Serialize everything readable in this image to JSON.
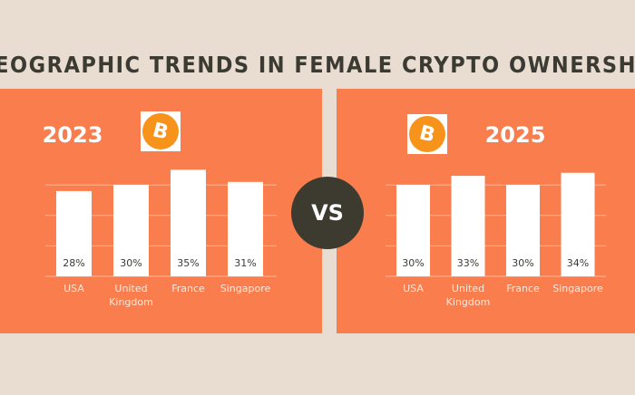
{
  "title": "GEOGRAPHIC TRENDS IN FEMALE CRYPTO OWNERSHIP",
  "comparison_label": "VS",
  "chart_data": [
    {
      "type": "bar",
      "title": "2023",
      "categories": [
        "USA",
        "United Kingdom",
        "France",
        "Singapore"
      ],
      "values": [
        28,
        30,
        35,
        31
      ],
      "value_labels": [
        "28%",
        "30%",
        "35%",
        "31%"
      ],
      "color": "#ffffff",
      "ylim": [
        0,
        36
      ],
      "yticks": [
        0,
        10,
        20,
        30
      ],
      "grid": true
    },
    {
      "type": "bar",
      "title": "2025",
      "categories": [
        "USA",
        "United Kingdom",
        "France",
        "Singapore"
      ],
      "values": [
        30,
        33,
        30,
        34
      ],
      "value_labels": [
        "30%",
        "33%",
        "30%",
        "34%"
      ],
      "color": "#ffffff",
      "ylim": [
        0,
        36
      ],
      "yticks": [
        0,
        10,
        20,
        30
      ],
      "grid": true
    }
  ]
}
